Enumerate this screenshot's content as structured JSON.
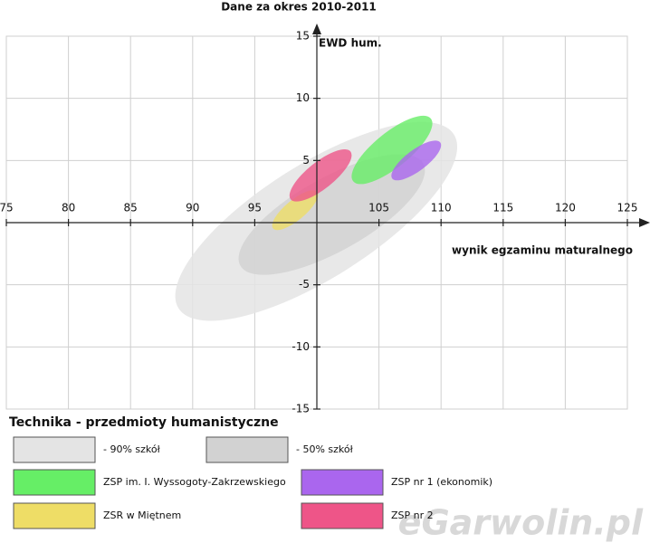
{
  "chart_data": {
    "type": "ellipse",
    "title": "Dane za okres 2010-2011",
    "x_label": "wynik egzaminu maturalnego",
    "y_label": "EWD hum.",
    "legend_title": "Technika - przedmioty humanistyczne",
    "watermark": "eGarwolin.pl",
    "xlim": [
      75,
      125
    ],
    "ylim": [
      -15,
      15
    ],
    "xticks": [
      75,
      80,
      85,
      90,
      95,
      105,
      110,
      115,
      120,
      125
    ],
    "yticks": [
      15,
      10,
      5,
      -5,
      -10,
      -15
    ],
    "origin": [
      100,
      0
    ],
    "grid": true,
    "series": [
      {
        "name": "- 90% szkół",
        "color": "#e4e4e4",
        "x": [
          88.6,
          111.3
        ],
        "y": [
          -7.9,
          8.1
        ]
      },
      {
        "name": "- 50% szkół",
        "color": "#d2d2d2",
        "x": [
          93.7,
          108.7
        ],
        "y": [
          -4.2,
          5.5
        ]
      },
      {
        "name": "ZSP im. I. Wyssogoty-Zakrzewskiego",
        "color": "#66ee66",
        "x": [
          102.8,
          109.3
        ],
        "y": [
          3.1,
          8.6
        ]
      },
      {
        "name": "ZSP nr 1 (ekonomik)",
        "color": "#aa66ee",
        "x": [
          106,
          110
        ],
        "y": [
          3.4,
          6.6
        ]
      },
      {
        "name": "ZSR w Miętnem",
        "color": "#eedd66",
        "x": [
          96.4,
          100.1
        ],
        "y": [
          -0.6,
          2.6
        ]
      },
      {
        "name": "ZSP nr 2",
        "color": "#ee5588",
        "x": [
          97.8,
          102.8
        ],
        "y": [
          1.7,
          5.9
        ]
      }
    ]
  }
}
